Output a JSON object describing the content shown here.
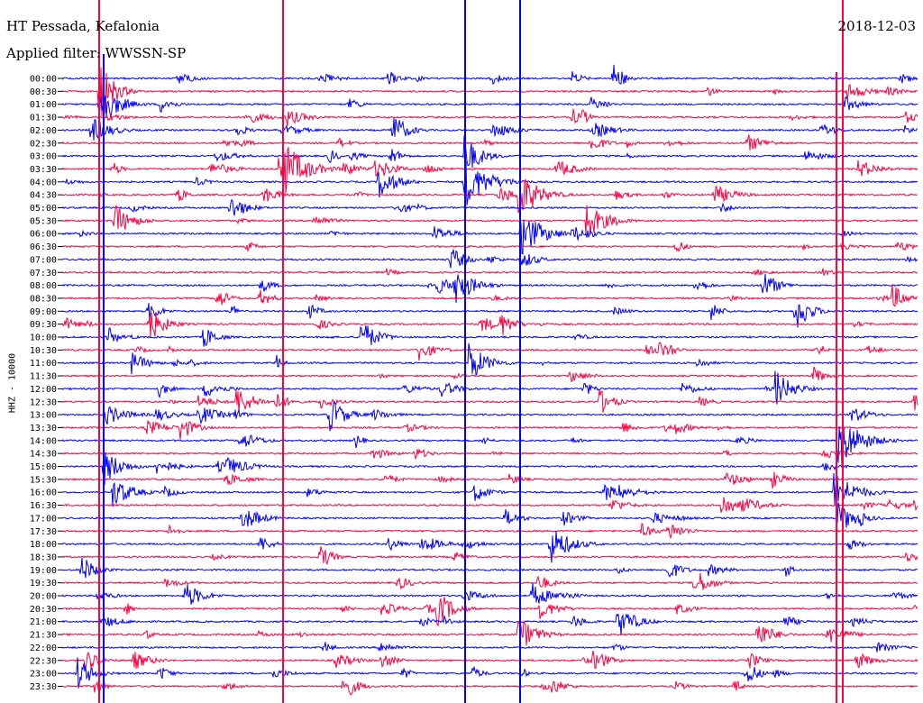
{
  "header": {
    "station": "HT Pessada, Kefalonia",
    "filter": "Applied filter: WWSSN-SP",
    "date": "2018-12-03"
  },
  "chart_data": {
    "type": "line",
    "title": "HT Pessada, Kefalonia",
    "subtitle": "Applied filter: WWSSN-SP",
    "ylabel": "HHZ - 10000",
    "xlabel": "",
    "tick_labels": [
      "00:00",
      "00:30",
      "01:00",
      "01:30",
      "02:00",
      "02:30",
      "03:00",
      "03:30",
      "04:00",
      "04:30",
      "05:00",
      "05:30",
      "06:00",
      "06:30",
      "07:00",
      "07:30",
      "08:00",
      "08:30",
      "09:00",
      "09:30",
      "10:00",
      "10:30",
      "11:00",
      "11:30",
      "12:00",
      "12:30",
      "13:00",
      "13:30",
      "14:00",
      "14:30",
      "15:00",
      "15:30",
      "16:00",
      "16:30",
      "17:00",
      "17:30",
      "18:00",
      "18:30",
      "19:00",
      "19:30",
      "20:00",
      "20:30",
      "21:00",
      "21:30",
      "22:00",
      "22:30",
      "23:00",
      "23:30"
    ],
    "trace_colors": [
      "#0000ff",
      "#ff0040"
    ],
    "grid": false,
    "legend": "none"
  }
}
